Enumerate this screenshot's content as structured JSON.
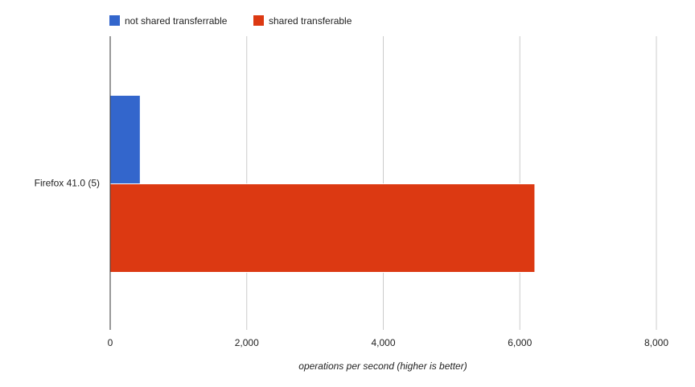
{
  "chart_data": {
    "type": "bar",
    "orientation": "horizontal",
    "categories": [
      "Firefox 41.0 (5)"
    ],
    "series": [
      {
        "name": "not shared transferrable",
        "color": "#3366cc",
        "values": [
          440
        ]
      },
      {
        "name": "shared transferable",
        "color": "#dc3912",
        "values": [
          6220
        ]
      }
    ],
    "xlabel": "operations per second (higher is better)",
    "ylabel": "",
    "xlim": [
      0,
      8000
    ],
    "xticks": [
      0,
      2000,
      4000,
      6000,
      8000
    ],
    "xtick_labels": [
      "0",
      "2,000",
      "4,000",
      "6,000",
      "8,000"
    ],
    "grid": true,
    "legend_position": "top-left"
  }
}
